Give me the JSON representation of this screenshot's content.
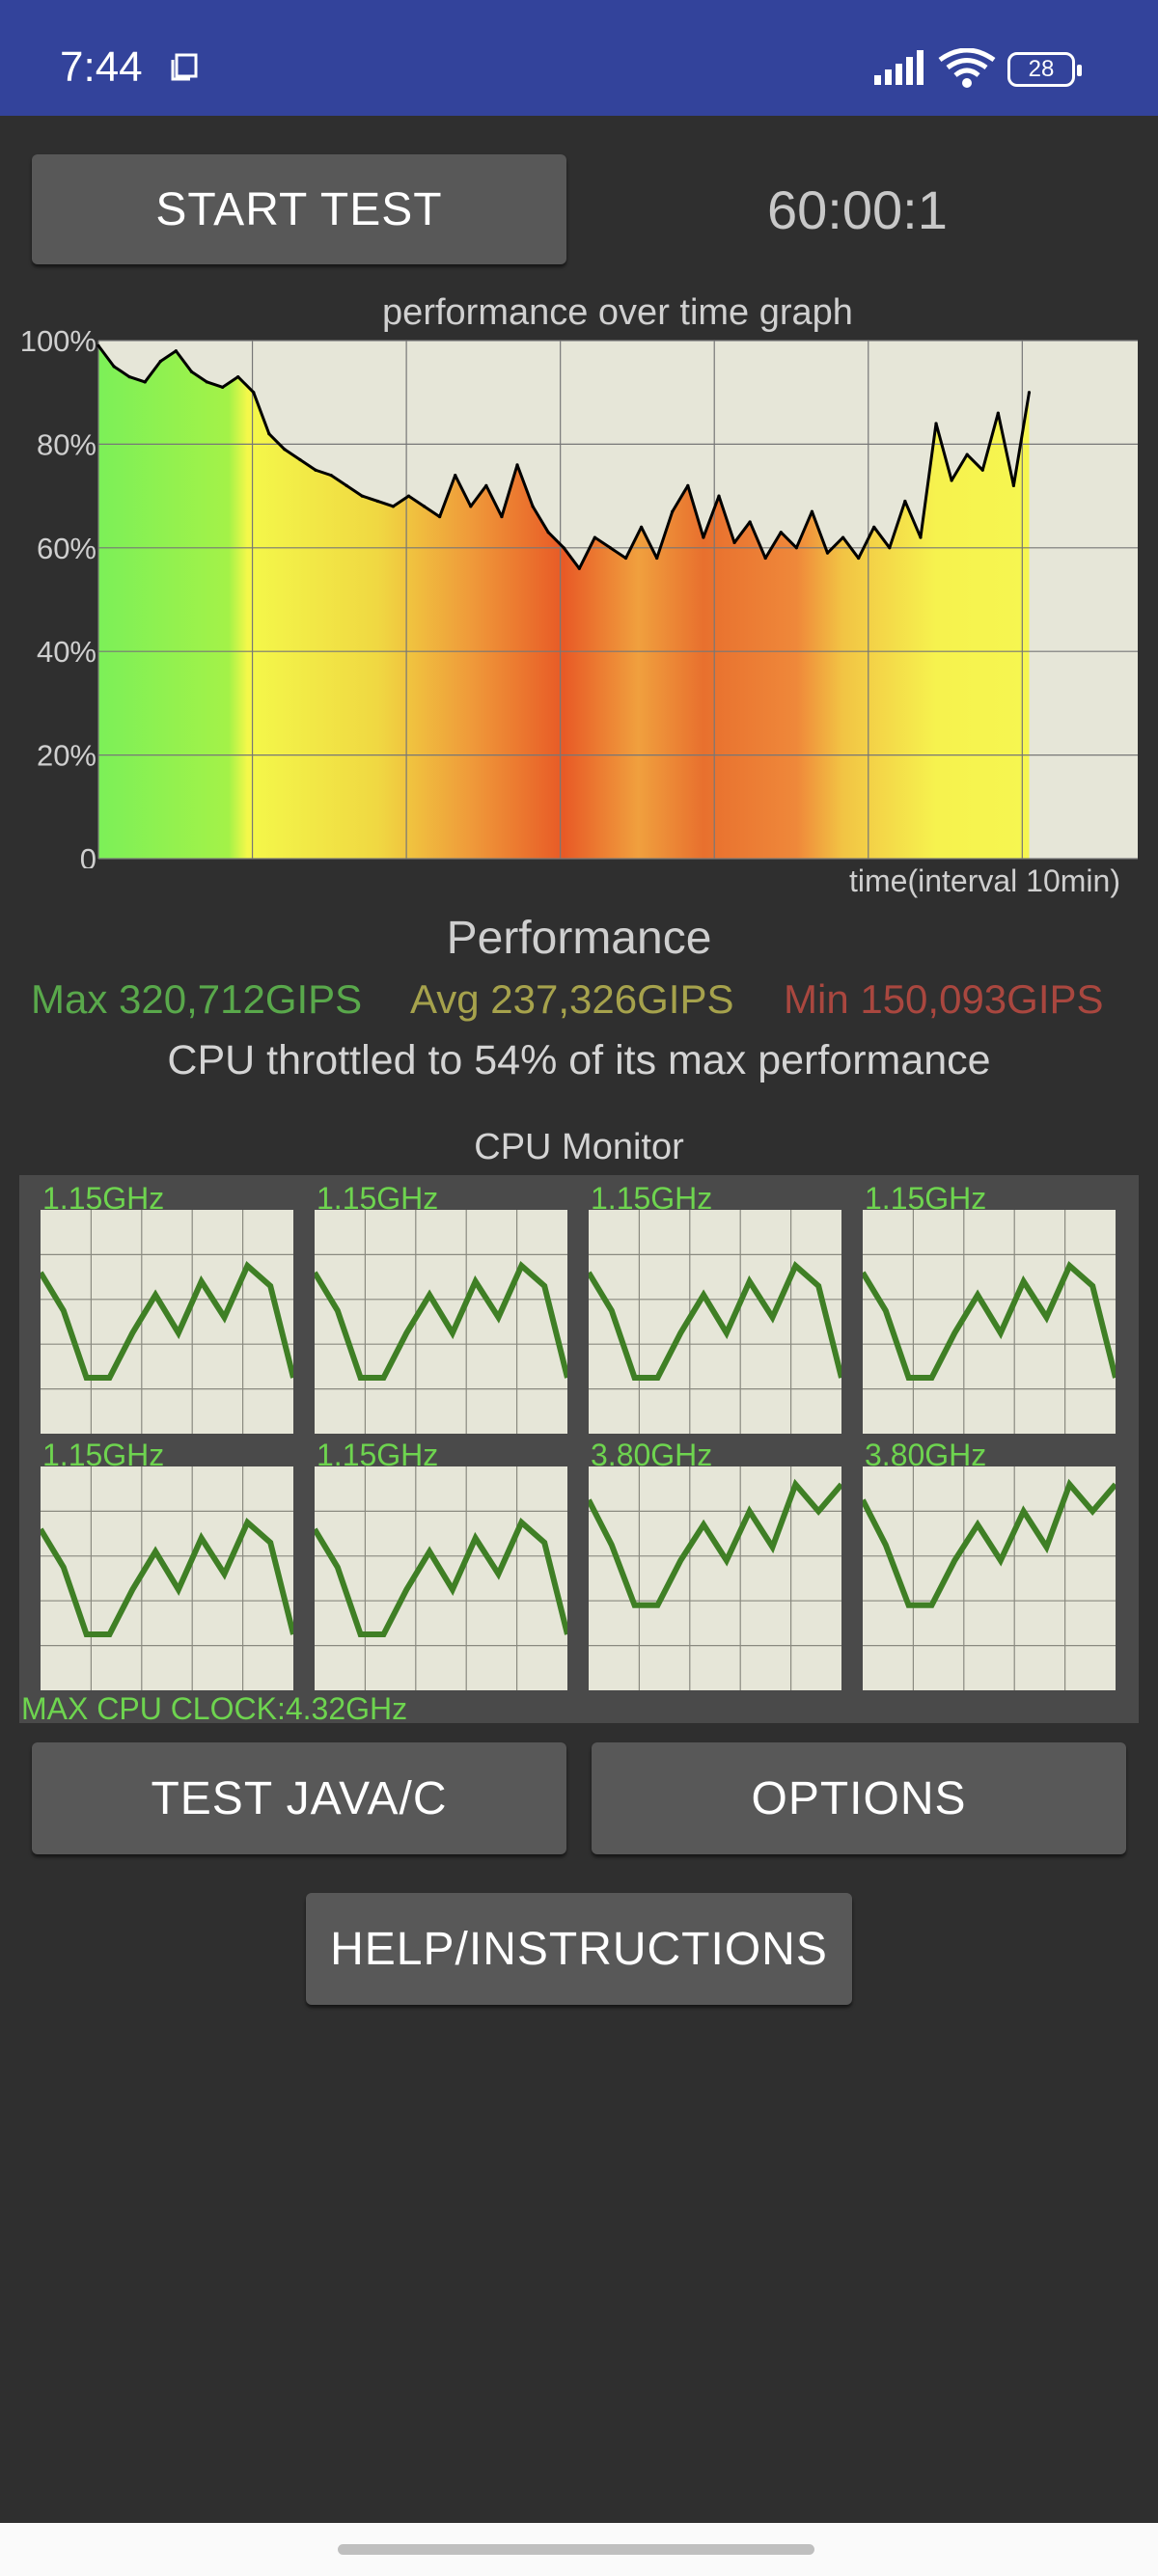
{
  "status_bar": {
    "time": "7:44",
    "battery": "28",
    "icons": [
      "notification-square-icon",
      "signal-bars-icon",
      "wifi-icon",
      "battery-icon"
    ]
  },
  "controls": {
    "start_test": "START TEST",
    "timer": "60:00:1",
    "test_java_c": "TEST JAVA/C",
    "options": "OPTIONS",
    "help": "HELP/INSTRUCTIONS"
  },
  "performance": {
    "heading": "Performance",
    "max": "Max 320,712GIPS",
    "avg": "Avg 237,326GIPS",
    "min": "Min 150,093GIPS",
    "throttle": "CPU throttled to 54% of its max performance"
  },
  "chart_data": {
    "type": "line",
    "title": "performance over time graph",
    "xlabel": "time(interval 10min)",
    "ylabel": "",
    "y_ticks": [
      "100%",
      "80%",
      "60%",
      "40%",
      "20%",
      "0"
    ],
    "ylim": [
      0,
      100
    ],
    "xlim": [
      0,
      67
    ],
    "grid": true,
    "series": [
      {
        "x": [
          0,
          1,
          2,
          3,
          4,
          5,
          6,
          7,
          8,
          9,
          10,
          11,
          12,
          13,
          14,
          15,
          16,
          17,
          18,
          19,
          20,
          21,
          22,
          23,
          24,
          25,
          26,
          27,
          28,
          29,
          30,
          31,
          32,
          33,
          34,
          35,
          36,
          37,
          38,
          39,
          40,
          41,
          42,
          43,
          44,
          45,
          46,
          47,
          48,
          49,
          50,
          51,
          52,
          53,
          54,
          55,
          56,
          57,
          58,
          59,
          60
        ],
        "values": [
          99,
          95,
          93,
          92,
          96,
          98,
          94,
          92,
          91,
          93,
          90,
          82,
          79,
          77,
          75,
          74,
          72,
          70,
          69,
          68,
          70,
          68,
          66,
          74,
          68,
          72,
          66,
          76,
          68,
          63,
          60,
          56,
          62,
          60,
          58,
          64,
          58,
          67,
          72,
          62,
          70,
          61,
          65,
          58,
          63,
          60,
          67,
          59,
          62,
          58,
          64,
          60,
          69,
          62,
          84,
          73,
          78,
          75,
          86,
          72,
          90
        ]
      }
    ]
  },
  "cpu_monitor": {
    "title": "CPU Monitor",
    "cores": [
      {
        "freq": "1.15GHz",
        "load": [
          0.72,
          0.55,
          0.25,
          0.25,
          0.45,
          0.62,
          0.45,
          0.68,
          0.52,
          0.75,
          0.66,
          0.25
        ]
      },
      {
        "freq": "1.15GHz",
        "load": [
          0.72,
          0.55,
          0.25,
          0.25,
          0.45,
          0.62,
          0.45,
          0.68,
          0.52,
          0.75,
          0.66,
          0.25
        ]
      },
      {
        "freq": "1.15GHz",
        "load": [
          0.72,
          0.55,
          0.25,
          0.25,
          0.45,
          0.62,
          0.45,
          0.68,
          0.52,
          0.75,
          0.66,
          0.25
        ]
      },
      {
        "freq": "1.15GHz",
        "load": [
          0.72,
          0.55,
          0.25,
          0.25,
          0.45,
          0.62,
          0.45,
          0.68,
          0.52,
          0.75,
          0.66,
          0.25
        ]
      },
      {
        "freq": "1.15GHz",
        "load": [
          0.72,
          0.55,
          0.25,
          0.25,
          0.45,
          0.62,
          0.45,
          0.68,
          0.52,
          0.75,
          0.66,
          0.25
        ]
      },
      {
        "freq": "1.15GHz",
        "load": [
          0.72,
          0.55,
          0.25,
          0.25,
          0.45,
          0.62,
          0.45,
          0.68,
          0.52,
          0.75,
          0.66,
          0.25
        ]
      },
      {
        "freq": "3.80GHz",
        "load": [
          0.85,
          0.65,
          0.38,
          0.38,
          0.58,
          0.74,
          0.58,
          0.8,
          0.64,
          0.92,
          0.8,
          0.92
        ]
      },
      {
        "freq": "3.80GHz",
        "load": [
          0.85,
          0.65,
          0.38,
          0.38,
          0.58,
          0.74,
          0.58,
          0.8,
          0.64,
          0.92,
          0.8,
          0.92
        ]
      }
    ],
    "max_clock": "MAX CPU CLOCK:4.32GHz"
  },
  "colors": {
    "header": "#33439b",
    "background": "#2f2f2f",
    "button": "#585858",
    "graph_bg": "#e6e6d8",
    "core_line": "#3f7f25",
    "freq_text": "#6ed44f"
  }
}
